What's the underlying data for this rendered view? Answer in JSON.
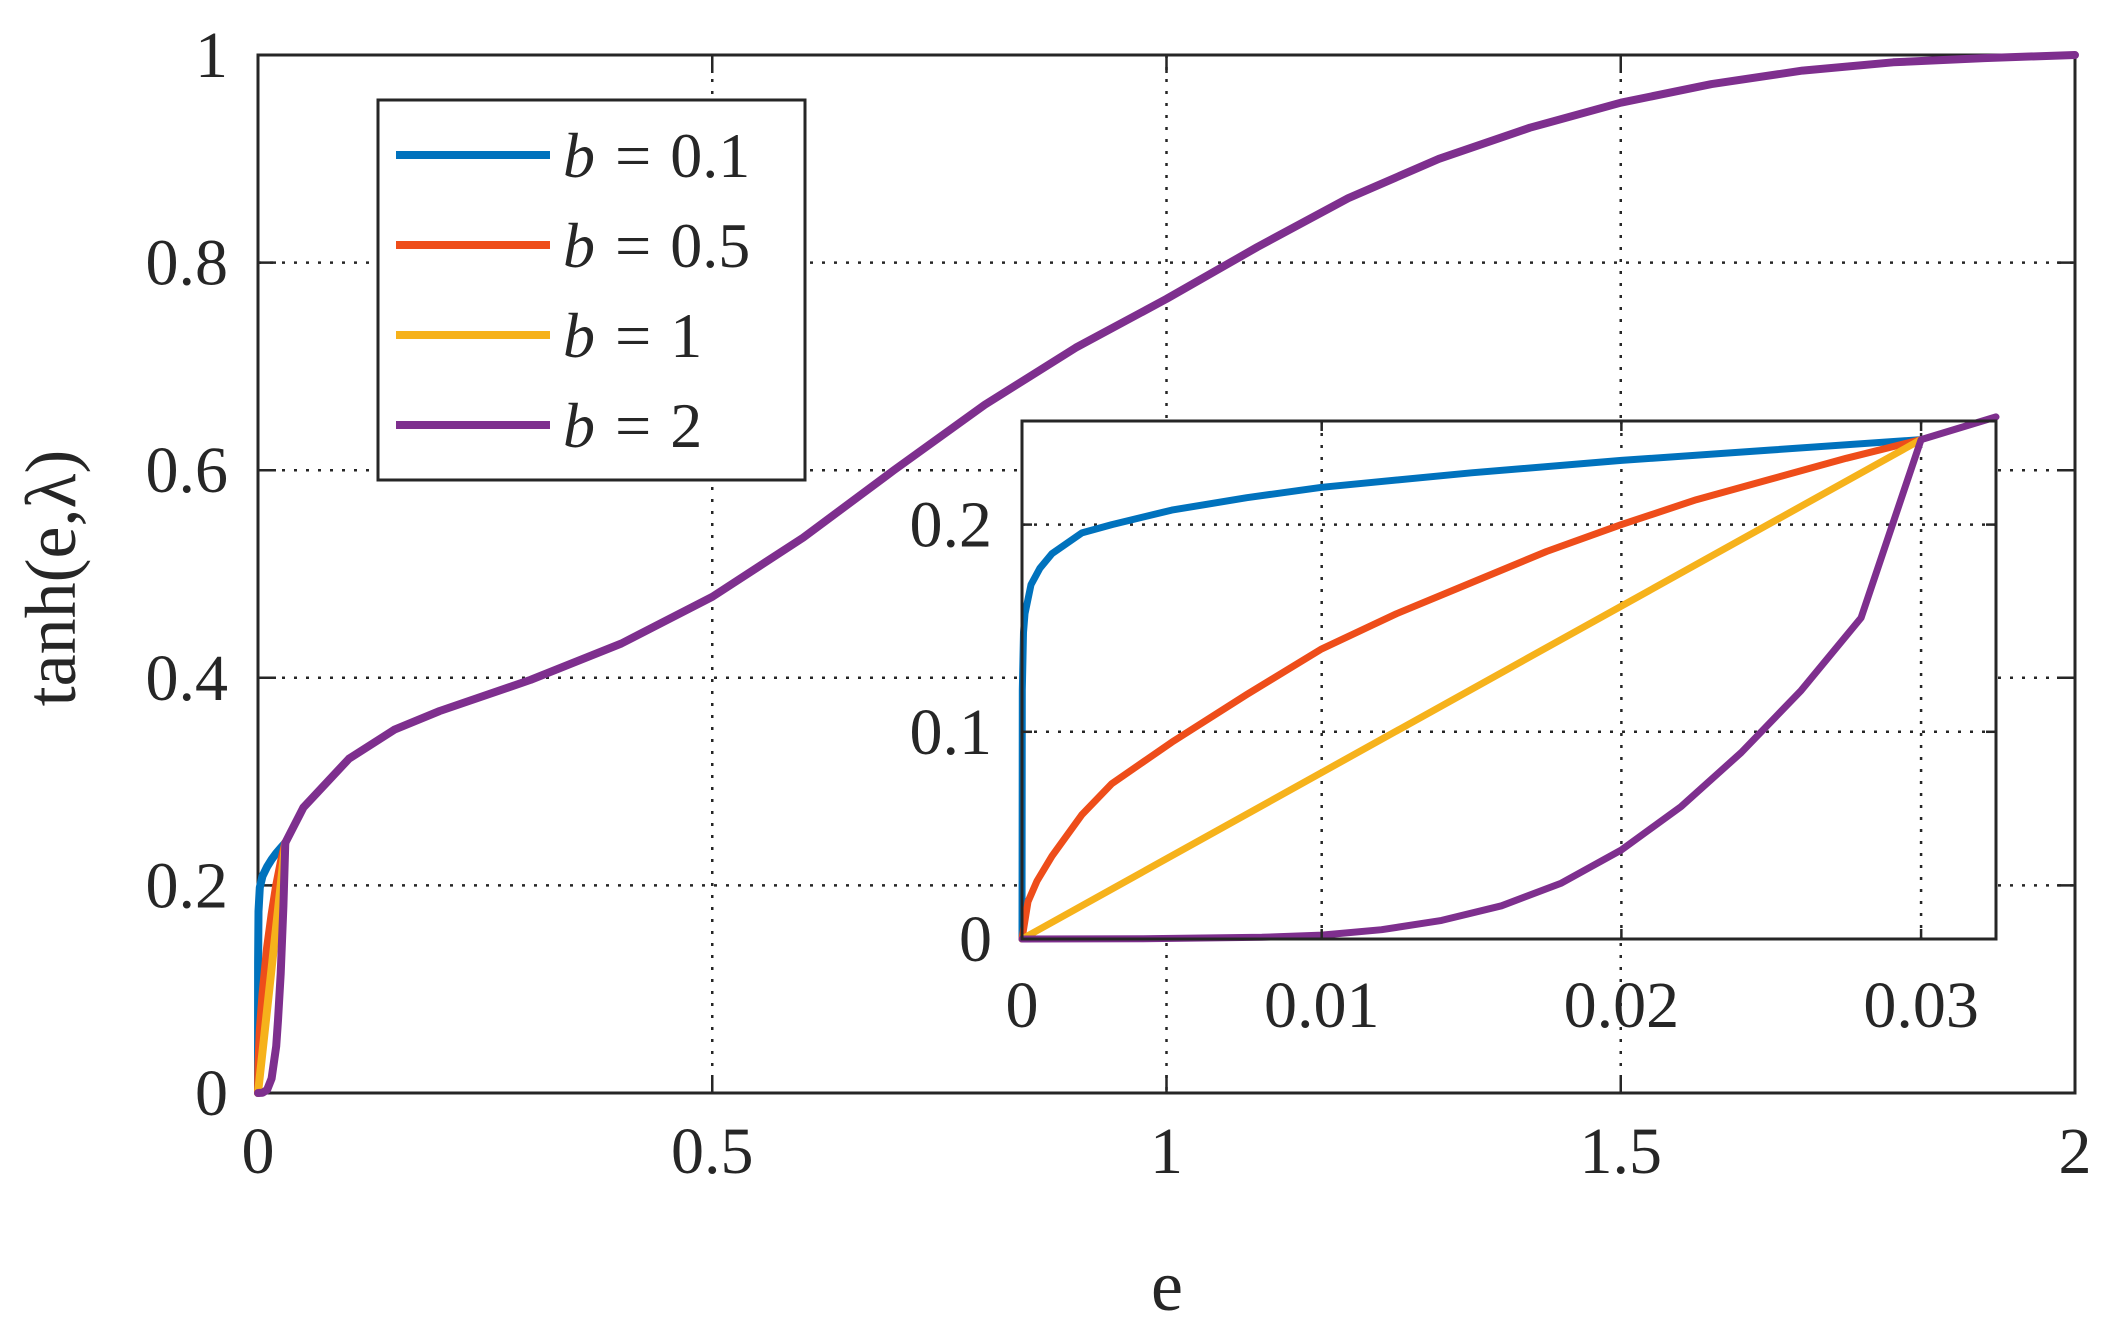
{
  "colors": {
    "b_0_1": "#0072BD",
    "b_0_5": "#EE4D1A",
    "b_1": "#F6B21B",
    "b_2": "#7E2F8E",
    "grid": "#262626",
    "axis": "#262626"
  },
  "chart_data": [
    {
      "type": "line",
      "role": "main",
      "xlabel": "e",
      "ylabel": "tanh(e,λ)",
      "xlim": [
        0,
        2
      ],
      "ylim": [
        0,
        1
      ],
      "xticks": [
        0,
        0.5,
        1,
        1.5,
        2
      ],
      "xtick_labels": [
        "0",
        "0.5",
        "1",
        "1.5",
        "2"
      ],
      "yticks": [
        0,
        0.2,
        0.4,
        0.6,
        0.8,
        1
      ],
      "ytick_labels": [
        "0",
        "0.2",
        "0.4",
        "0.6",
        "0.8",
        "1"
      ],
      "grid": "dotted",
      "legend_position": "upper-left",
      "legend": [
        {
          "label_prefix": "b = ",
          "label_value": "0.1",
          "color_key": "b_0_1"
        },
        {
          "label_prefix": "b = ",
          "label_value": "0.5",
          "color_key": "b_0_5"
        },
        {
          "label_prefix": "b = ",
          "label_value": "1",
          "color_key": "b_1"
        },
        {
          "label_prefix": "b = ",
          "label_value": "2",
          "color_key": "b_2"
        }
      ],
      "series": [
        {
          "name": "b = 0.1",
          "color_key": "b_0_1",
          "x": [
            0,
            0.0001,
            0.0005,
            0.002,
            0.005,
            0.01,
            0.015,
            0.02,
            0.025,
            0.03
          ],
          "y": [
            0,
            0.125,
            0.175,
            0.198,
            0.209,
            0.218,
            0.225,
            0.231,
            0.236,
            0.241
          ]
        },
        {
          "name": "b = 0.5",
          "color_key": "b_0_5",
          "x": [
            0,
            0.0005,
            0.002,
            0.005,
            0.01,
            0.015,
            0.02,
            0.025,
            0.03
          ],
          "y": [
            0,
            0.028,
            0.06,
            0.095,
            0.14,
            0.172,
            0.2,
            0.222,
            0.241
          ]
        },
        {
          "name": "b = 1",
          "color_key": "b_1",
          "x": [
            0,
            0.03
          ],
          "y": [
            0,
            0.241
          ]
        },
        {
          "name": "b = 2",
          "color_key": "b_2",
          "x": [
            0,
            0.005,
            0.01,
            0.015,
            0.02,
            0.022,
            0.025,
            0.028,
            0.03,
            0.05,
            0.1,
            0.15,
            0.2,
            0.3,
            0.4,
            0.5,
            0.6,
            0.7,
            0.8,
            0.9,
            1.0,
            1.1,
            1.2,
            1.3,
            1.4,
            1.5,
            1.6,
            1.7,
            1.8,
            1.9,
            2.0
          ],
          "y": [
            0,
            0.0002,
            0.003,
            0.014,
            0.045,
            0.07,
            0.115,
            0.18,
            0.241,
            0.275,
            0.322,
            0.35,
            0.368,
            0.398,
            0.433,
            0.478,
            0.535,
            0.6,
            0.663,
            0.718,
            0.765,
            0.815,
            0.862,
            0.9,
            0.93,
            0.954,
            0.972,
            0.985,
            0.993,
            0.997,
            1.0
          ]
        }
      ]
    },
    {
      "type": "line",
      "role": "inset",
      "xlim": [
        0,
        0.0325
      ],
      "ylim": [
        0,
        0.25
      ],
      "xticks": [
        0,
        0.01,
        0.02,
        0.03
      ],
      "xtick_labels": [
        "0",
        "0.01",
        "0.02",
        "0.03"
      ],
      "yticks": [
        0,
        0.1,
        0.2
      ],
      "ytick_labels": [
        "0",
        "0.1",
        "0.2"
      ],
      "grid": "dotted",
      "series": [
        {
          "name": "b = 0.1",
          "color_key": "b_0_1",
          "x": [
            0,
            1e-05,
            5e-05,
            0.0001,
            0.0003,
            0.0006,
            0.001,
            0.002,
            0.003,
            0.005,
            0.0075,
            0.01,
            0.015,
            0.02,
            0.025,
            0.03
          ],
          "y": [
            0,
            0.12,
            0.148,
            0.157,
            0.171,
            0.179,
            0.186,
            0.196,
            0.2,
            0.207,
            0.213,
            0.218,
            0.225,
            0.231,
            0.236,
            0.241
          ]
        },
        {
          "name": "b = 0.5",
          "color_key": "b_0_5",
          "x": [
            0,
            0.0002,
            0.0005,
            0.001,
            0.002,
            0.003,
            0.005,
            0.0075,
            0.01,
            0.0125,
            0.015,
            0.0175,
            0.02,
            0.0225,
            0.025,
            0.0275,
            0.03
          ],
          "y": [
            0,
            0.018,
            0.028,
            0.04,
            0.06,
            0.075,
            0.095,
            0.118,
            0.14,
            0.157,
            0.172,
            0.187,
            0.2,
            0.212,
            0.222,
            0.232,
            0.241
          ]
        },
        {
          "name": "b = 1",
          "color_key": "b_1",
          "x": [
            0,
            0.03
          ],
          "y": [
            0,
            0.241
          ]
        },
        {
          "name": "b = 2",
          "color_key": "b_2",
          "x": [
            0,
            0.004,
            0.008,
            0.01,
            0.012,
            0.014,
            0.016,
            0.018,
            0.02,
            0.022,
            0.024,
            0.026,
            0.028,
            0.03,
            0.0325
          ],
          "y": [
            0,
            0.0001,
            0.0008,
            0.0019,
            0.0045,
            0.009,
            0.016,
            0.027,
            0.043,
            0.064,
            0.09,
            0.12,
            0.155,
            0.241,
            0.252
          ]
        }
      ]
    }
  ]
}
